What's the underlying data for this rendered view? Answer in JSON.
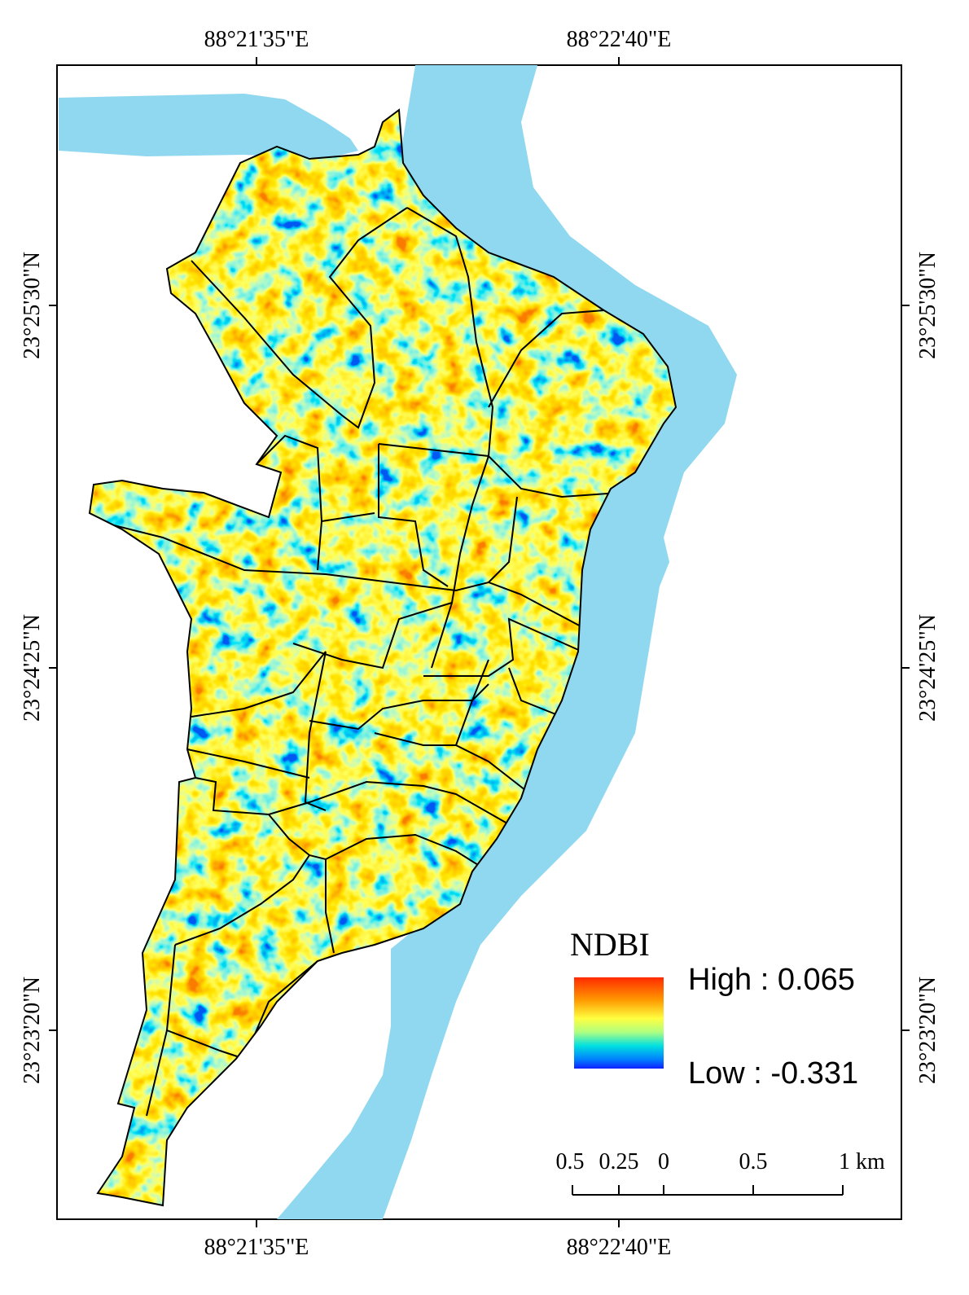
{
  "map": {
    "top_labels": [
      "88°21'35\"E",
      "88°22'40\"E"
    ],
    "bottom_labels": [
      "88°21'35\"E",
      "88°22'40\"E"
    ],
    "left_labels": [
      "23°25'30\"N",
      "23°24'25\"N",
      "23°23'20\"N"
    ],
    "right_labels": [
      "23°25'30\"N",
      "23°24'25\"N",
      "23°23'20\"N"
    ],
    "legend": {
      "title": "NDBI",
      "high": "High : 0.065",
      "low": "Low : -0.331"
    },
    "scale_bar": {
      "labels": [
        "0.5",
        "0.25",
        "0",
        "0.5",
        "1 km"
      ]
    }
  }
}
